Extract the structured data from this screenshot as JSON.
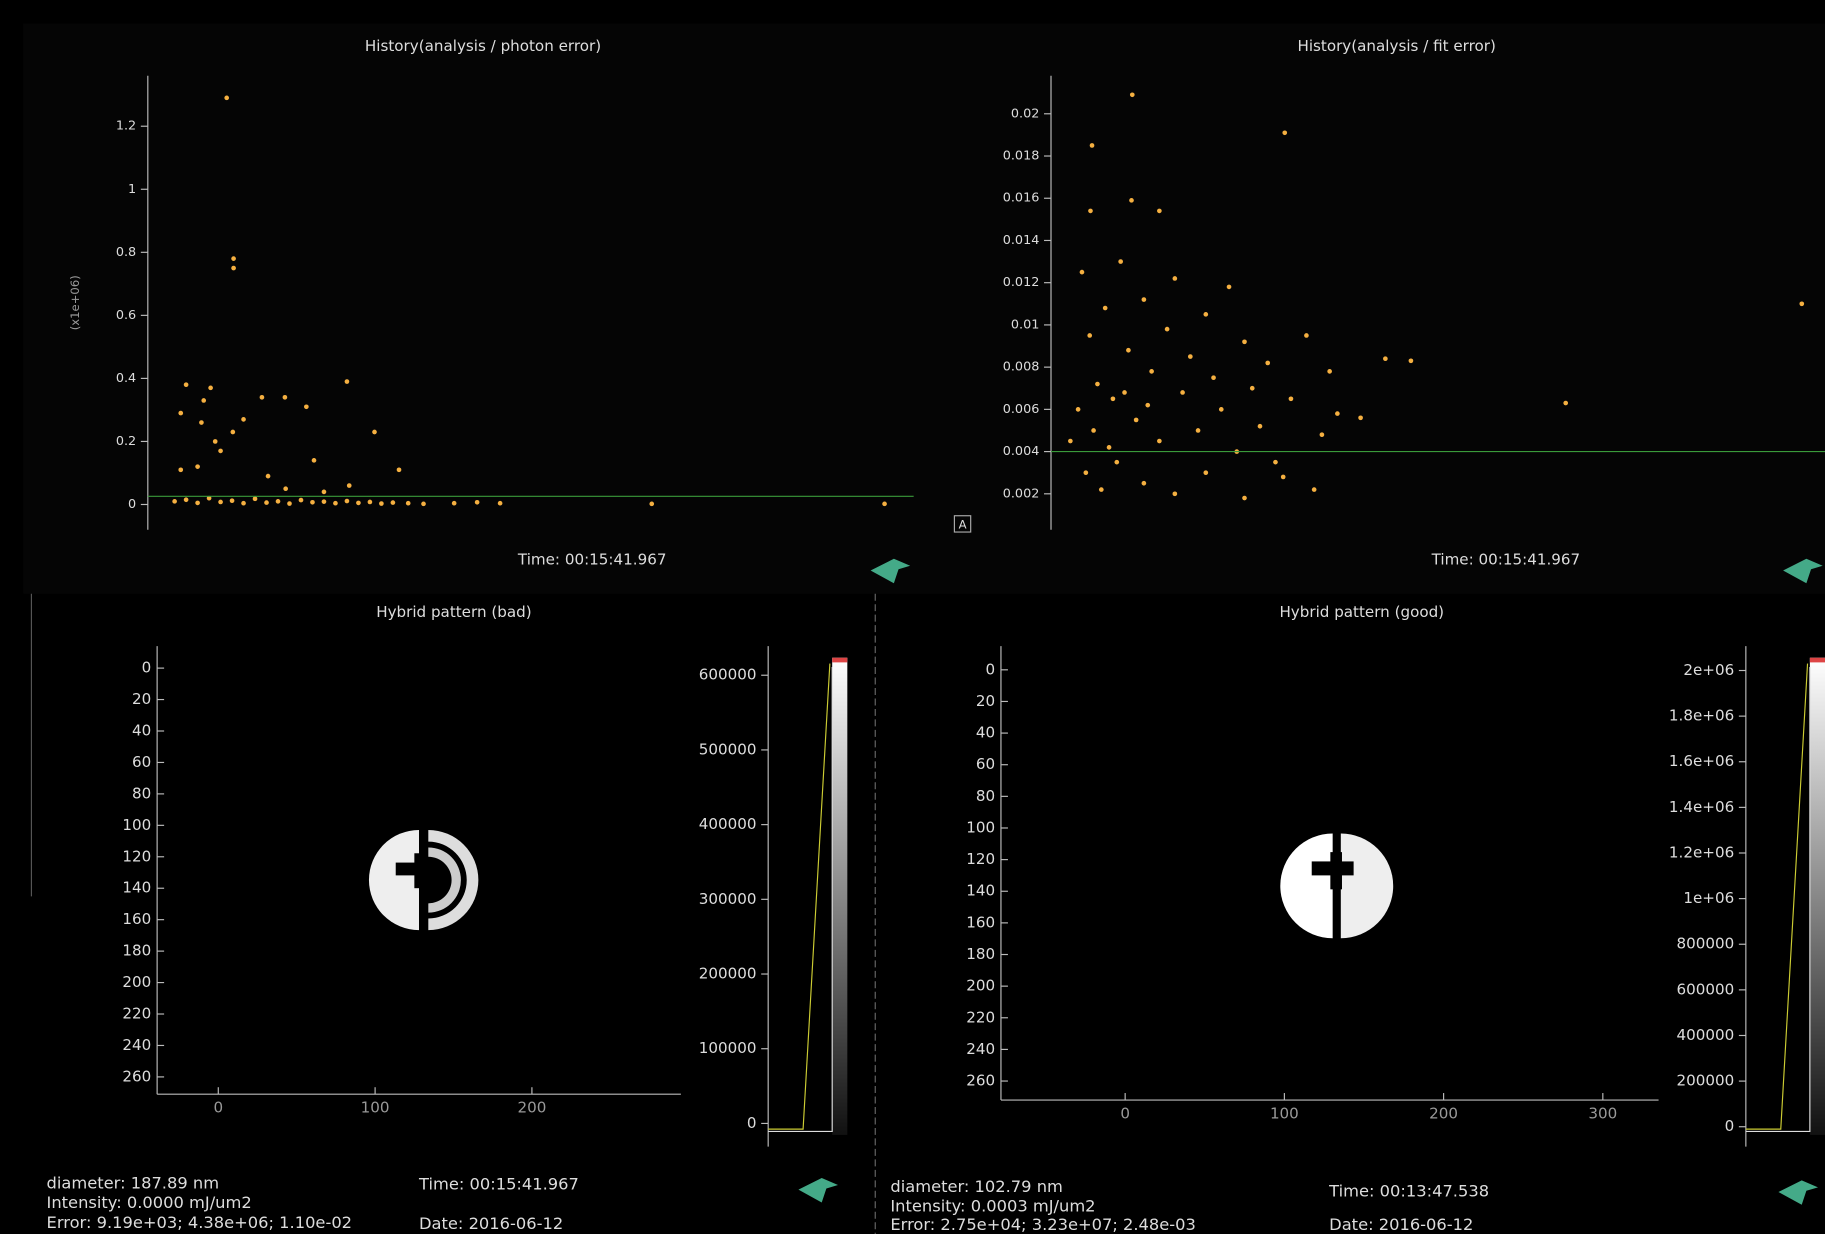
{
  "chart_data": [
    {
      "type": "scatter",
      "title": "History(analysis / photon error)",
      "ylabel": "(x1e+06)",
      "time": "Time: 00:15:41.967",
      "color": "#f5b041",
      "threshold": 0.026,
      "threshold_color": "#3a9a3a",
      "xlim": [
        0,
        100
      ],
      "ylim": [
        -0.08,
        1.36
      ],
      "yticks": [
        0,
        0.2,
        0.4,
        0.6,
        0.8,
        1,
        1.2
      ],
      "x": [
        10.3,
        11.2,
        11.2,
        5,
        8.2,
        7.3,
        14.9,
        17.9,
        20.7,
        26,
        29.6,
        32.8,
        4.3,
        8.8,
        11.1,
        6.5,
        4.3,
        15.7,
        21.7,
        26.3,
        9.5,
        12.5,
        7,
        18,
        23,
        3.5,
        5,
        6.5,
        8,
        9.5,
        11,
        12.5,
        14,
        15.5,
        17,
        18.5,
        20,
        21.5,
        23,
        24.5,
        26,
        27.5,
        29,
        30.5,
        32,
        34,
        36,
        40,
        43,
        46,
        65.8,
        96.2
      ],
      "values": [
        1.29,
        0.78,
        0.75,
        0.38,
        0.37,
        0.33,
        0.34,
        0.34,
        0.31,
        0.39,
        0.23,
        0.11,
        0.29,
        0.2,
        0.23,
        0.12,
        0.11,
        0.09,
        0.14,
        0.06,
        0.17,
        0.27,
        0.26,
        0.05,
        0.04,
        0.01,
        0.015,
        0.005,
        0.02,
        0.008,
        0.012,
        0.004,
        0.018,
        0.006,
        0.01,
        0.003,
        0.014,
        0.007,
        0.009,
        0.004,
        0.011,
        0.005,
        0.008,
        0.003,
        0.006,
        0.004,
        0.002,
        0.004,
        0.007,
        0.004,
        0.002,
        0.002
      ]
    },
    {
      "type": "scatter",
      "title": "History(analysis / fit error)",
      "time": "Time: 00:15:41.967",
      "color": "#f5b041",
      "threshold": 0.004,
      "threshold_color": "#3a9a3a",
      "xlim": [
        0,
        100
      ],
      "ylim": [
        0.0003,
        0.0218
      ],
      "yticks": [
        0.002,
        0.004,
        0.006,
        0.008,
        0.01,
        0.012,
        0.014,
        0.016,
        0.018,
        0.02
      ],
      "x": [
        5.3,
        10.5,
        30.2,
        5.1,
        10.4,
        14,
        97,
        66.5,
        43.2,
        46.5,
        4,
        5,
        6,
        7,
        8,
        9,
        10,
        11,
        12,
        13,
        14,
        15,
        16,
        17,
        18,
        19,
        20,
        21,
        22,
        23,
        24,
        25,
        26,
        27,
        28,
        29,
        31,
        33,
        35,
        37,
        4.5,
        6.5,
        8.5,
        12,
        16,
        20,
        25,
        30,
        34,
        3.5,
        5.5,
        7.5,
        9.5,
        12.5,
        36,
        40,
        2.5
      ],
      "values": [
        0.0185,
        0.0209,
        0.0191,
        0.0154,
        0.0159,
        0.0154,
        0.011,
        0.0063,
        0.0084,
        0.0083,
        0.0125,
        0.0095,
        0.0072,
        0.0108,
        0.0065,
        0.013,
        0.0088,
        0.0055,
        0.0112,
        0.0078,
        0.0045,
        0.0098,
        0.0122,
        0.0068,
        0.0085,
        0.005,
        0.0105,
        0.0075,
        0.006,
        0.0118,
        0.004,
        0.0092,
        0.007,
        0.0052,
        0.0082,
        0.0035,
        0.0065,
        0.0095,
        0.0048,
        0.0058,
        0.003,
        0.0022,
        0.0035,
        0.0025,
        0.002,
        0.003,
        0.0018,
        0.0028,
        0.0022,
        0.006,
        0.005,
        0.0042,
        0.0068,
        0.0062,
        0.0078,
        0.0056,
        0.0045
      ]
    },
    {
      "type": "image",
      "title": "Hybrid pattern (bad)",
      "time": "Time: 00:15:41.967",
      "date": "Date: 2016-06-12",
      "info": [
        "diameter: 187.89 nm",
        "Intensity: 0.0000 mJ/um2",
        "Error: 9.19e+03; 4.38e+06; 1.10e-02"
      ],
      "xlim": [
        -39,
        295
      ],
      "ylim": [
        -14,
        271
      ],
      "y_inverted": true,
      "xticks": [
        0,
        100,
        200
      ],
      "yticks": [
        0,
        20,
        40,
        60,
        80,
        100,
        120,
        140,
        160,
        180,
        200,
        220,
        240,
        260
      ],
      "clim": [
        -31000,
        639000
      ],
      "cticks": [
        0,
        100000,
        200000,
        300000,
        400000,
        500000,
        600000
      ]
    },
    {
      "type": "image",
      "title": "Hybrid pattern (good)",
      "time": "Time: 00:13:47.538",
      "date": "Date: 2016-06-12",
      "info": [
        "diameter: 102.79 nm",
        "Intensity: 0.0003 mJ/um2",
        "Error: 2.75e+04; 3.23e+07; 2.48e-03"
      ],
      "xlim": [
        -78,
        335
      ],
      "ylim": [
        -15,
        272
      ],
      "y_inverted": true,
      "xticks": [
        0,
        100,
        200,
        300
      ],
      "yticks": [
        0,
        20,
        40,
        60,
        80,
        100,
        120,
        140,
        160,
        180,
        200,
        220,
        240,
        260
      ],
      "clim": [
        -87000,
        2107000
      ],
      "cticks": [
        0,
        200000,
        400000,
        600000,
        800000,
        {
          "value": 1000000,
          "label": "1e+06"
        },
        {
          "value": 1200000,
          "label": "1.2e+06"
        },
        {
          "value": 1400000,
          "label": "1.4e+06"
        },
        {
          "value": 1600000,
          "label": "1.6e+06"
        },
        {
          "value": 1800000,
          "label": "1.8e+06"
        },
        {
          "value": 2000000,
          "label": "2e+06"
        }
      ]
    }
  ]
}
